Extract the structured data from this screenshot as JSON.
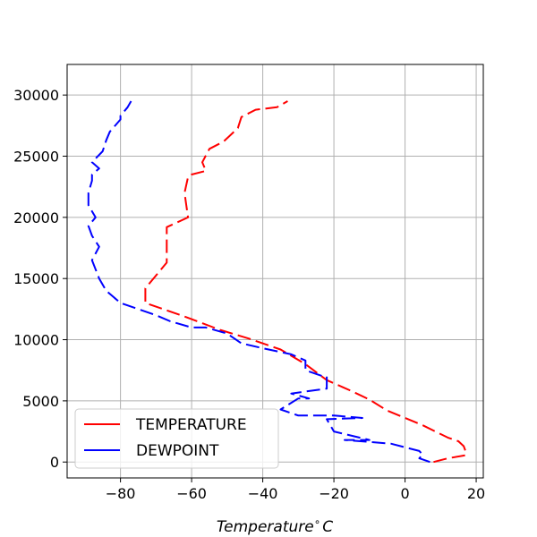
{
  "chart_data": {
    "type": "line",
    "title": "",
    "xlabel": "Temperature$^\\circ C$",
    "xlabel_parts": {
      "main": "Temperature",
      "sup": "∘",
      "unit": "C"
    },
    "ylabel": "",
    "xlim": [
      -95,
      22
    ],
    "ylim": [
      -1300,
      32500
    ],
    "xticks": [
      -80,
      -60,
      -40,
      -20,
      0,
      20
    ],
    "yticks": [
      0,
      5000,
      10000,
      15000,
      20000,
      25000,
      30000
    ],
    "grid": true,
    "legend_position": "lower-left",
    "series": [
      {
        "name": "TEMPERATURE",
        "color": "#ff0000",
        "linestyle": "dashed",
        "points": [
          [
            8,
            0
          ],
          [
            12,
            300
          ],
          [
            17,
            550
          ],
          [
            17,
            900
          ],
          [
            16.5,
            1300
          ],
          [
            15,
            1700
          ],
          [
            12,
            2000
          ],
          [
            5,
            3000
          ],
          [
            0,
            3600
          ],
          [
            -5,
            4200
          ],
          [
            -10,
            5100
          ],
          [
            -15,
            5800
          ],
          [
            -22,
            6700
          ],
          [
            -28,
            8000
          ],
          [
            -35,
            9200
          ],
          [
            -44,
            10100
          ],
          [
            -52,
            10800
          ],
          [
            -63,
            12000
          ],
          [
            -73,
            13000
          ],
          [
            -73,
            14200
          ],
          [
            -67,
            16300
          ],
          [
            -67,
            18500
          ],
          [
            -67,
            19200
          ],
          [
            -61,
            20000
          ],
          [
            -62,
            22000
          ],
          [
            -61,
            23300
          ],
          [
            -60,
            23500
          ],
          [
            -56,
            23800
          ],
          [
            -57,
            24500
          ],
          [
            -55,
            25600
          ],
          [
            -51,
            26200
          ],
          [
            -47,
            27300
          ],
          [
            -46,
            28200
          ],
          [
            -42,
            28800
          ],
          [
            -36,
            29000
          ],
          [
            -33,
            29500
          ]
        ]
      },
      {
        "name": "DEWPOINT",
        "color": "#0000ff",
        "linestyle": "dashed",
        "points": [
          [
            7,
            0
          ],
          [
            4,
            300
          ],
          [
            5,
            600
          ],
          [
            4,
            900
          ],
          [
            -4,
            1500
          ],
          [
            -17,
            1800
          ],
          [
            -10,
            1800
          ],
          [
            -20,
            2500
          ],
          [
            -22,
            3500
          ],
          [
            -12,
            3600
          ],
          [
            -20,
            3800
          ],
          [
            -25,
            3800
          ],
          [
            -30,
            3800
          ],
          [
            -35,
            4300
          ],
          [
            -30,
            5200
          ],
          [
            -27,
            5200
          ],
          [
            -32,
            5600
          ],
          [
            -22,
            6000
          ],
          [
            -22,
            7000
          ],
          [
            -23,
            7000
          ],
          [
            -28,
            7500
          ],
          [
            -28,
            8300
          ],
          [
            -32,
            8800
          ],
          [
            -40,
            9300
          ],
          [
            -46,
            9700
          ],
          [
            -50,
            10500
          ],
          [
            -56,
            11000
          ],
          [
            -60,
            11000
          ],
          [
            -66,
            11500
          ],
          [
            -70,
            12000
          ],
          [
            -80,
            13000
          ],
          [
            -84,
            14000
          ],
          [
            -86,
            15000
          ],
          [
            -88,
            16500
          ],
          [
            -86,
            17600
          ],
          [
            -88,
            18500
          ],
          [
            -89,
            19300
          ],
          [
            -87,
            20000
          ],
          [
            -89,
            21000
          ],
          [
            -89,
            22000
          ],
          [
            -88,
            23000
          ],
          [
            -88,
            23500
          ],
          [
            -86,
            24000
          ],
          [
            -88,
            24500
          ],
          [
            -85,
            25400
          ],
          [
            -84,
            26300
          ],
          [
            -83,
            27000
          ],
          [
            -80,
            28000
          ],
          [
            -80,
            28300
          ],
          [
            -78,
            29000
          ],
          [
            -77,
            29500
          ]
        ]
      }
    ]
  }
}
